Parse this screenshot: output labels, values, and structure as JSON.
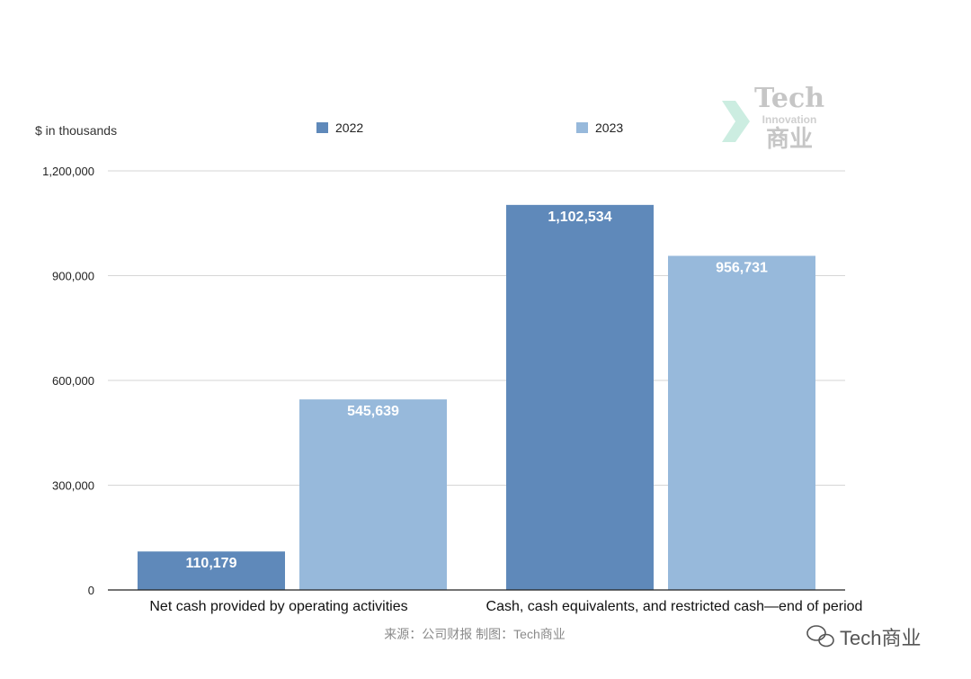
{
  "chart_data": {
    "type": "bar",
    "ylabel": "$ in thousands",
    "categories": [
      "Net cash provided by operating activities",
      "Cash, cash equivalents, and restricted cash—end of period"
    ],
    "series": [
      {
        "name": "2022",
        "color": "#5f89ba",
        "values": [
          110179,
          1102534
        ],
        "labels": [
          "110,179",
          "1,102,534"
        ]
      },
      {
        "name": "2023",
        "color": "#97b9db",
        "values": [
          545639,
          956731
        ],
        "labels": [
          "545,639",
          "956,731"
        ]
      }
    ],
    "ylim": [
      0,
      1200000
    ],
    "yticks": [
      0,
      300000,
      600000,
      900000,
      1200000
    ],
    "ytick_labels": [
      "0",
      "300,000",
      "600,000",
      "900,000",
      "1,200,000"
    ],
    "grid": true,
    "legend_position": "top"
  },
  "source_text": "来源：公司财报 制图：Tech商业",
  "watermark": {
    "line1": "Tech",
    "line2": "Innovation",
    "line3": "商业"
  },
  "badge": {
    "icon": "wechat-icon",
    "text": "Tech商业"
  }
}
